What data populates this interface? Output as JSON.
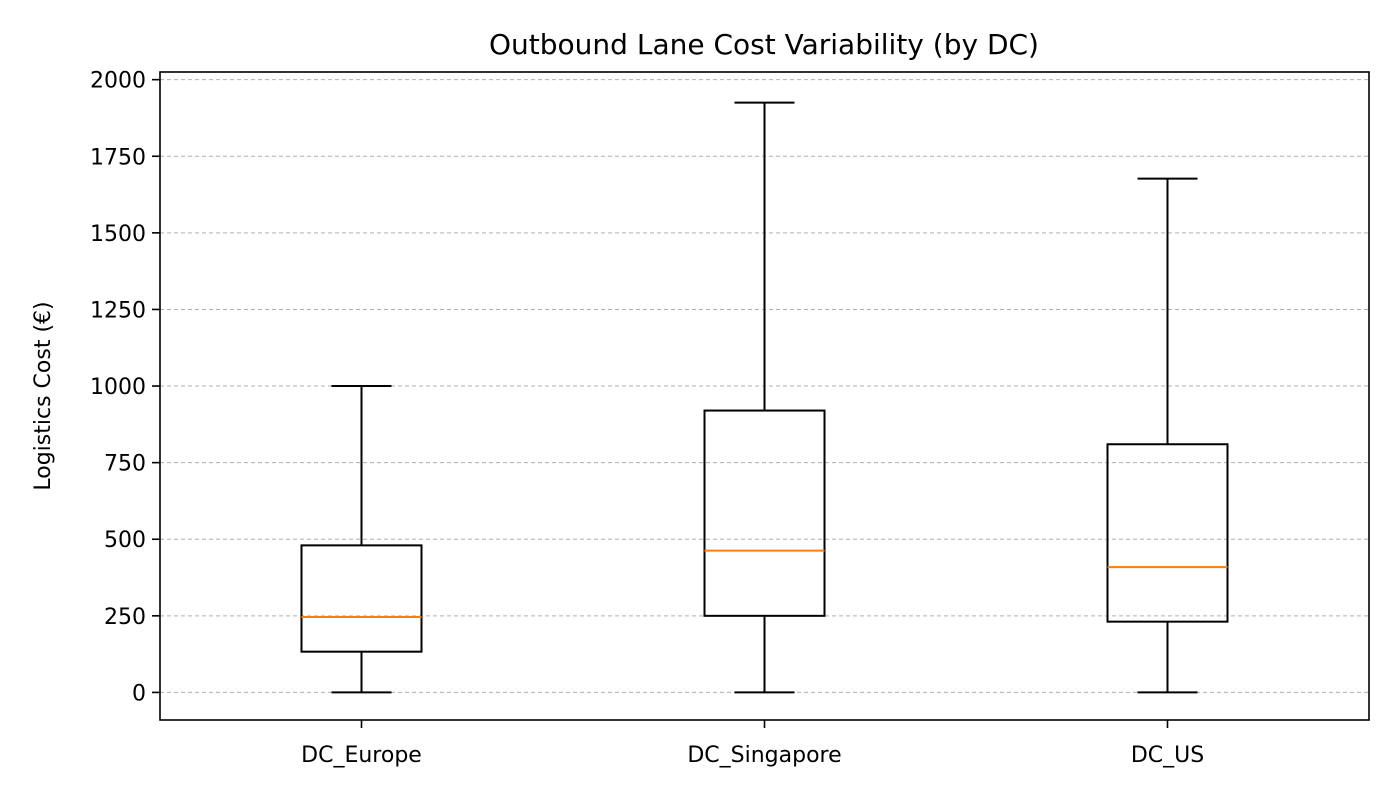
{
  "chart_data": {
    "type": "box",
    "title": "Outbound Lane Cost Variability (by DC)",
    "xlabel": "",
    "ylabel": "Logistics Cost (€)",
    "ylim": [
      -90,
      2025
    ],
    "yticks": [
      0,
      250,
      500,
      750,
      1000,
      1250,
      1500,
      1750,
      2000
    ],
    "grid": "y-dashed",
    "categories": [
      "DC_Europe",
      "DC_Singapore",
      "DC_US"
    ],
    "boxes": [
      {
        "name": "DC_Europe",
        "whisker_low": 0,
        "q1": 133,
        "median": 246,
        "q3": 480,
        "whisker_high": 1000
      },
      {
        "name": "DC_Singapore",
        "whisker_low": 0,
        "q1": 250,
        "median": 463,
        "q3": 920,
        "whisker_high": 1925
      },
      {
        "name": "DC_US",
        "whisker_low": 0,
        "q1": 231,
        "median": 409,
        "q3": 810,
        "whisker_high": 1677
      }
    ],
    "colors": {
      "box": "#000000",
      "median": "#ff7f0e",
      "grid": "#b0b0b0"
    }
  }
}
